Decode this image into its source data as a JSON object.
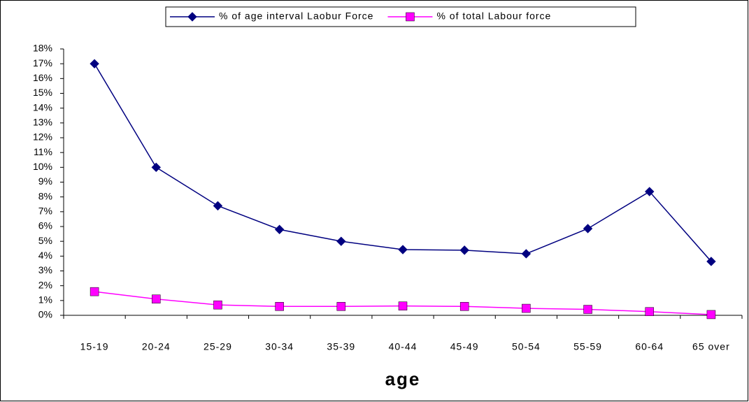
{
  "chart_data": {
    "type": "line",
    "x_label": "age",
    "categories": [
      "15-19",
      "20-24",
      "25-29",
      "30-34",
      "35-39",
      "40-44",
      "45-49",
      "50-54",
      "55-59",
      "60-64",
      "65 over"
    ],
    "series": [
      {
        "name": "% of age interval Laobur Force",
        "color": "#000080",
        "marker": "diamond",
        "values": [
          17.0,
          10.0,
          7.4,
          5.8,
          5.0,
          4.44,
          4.4,
          4.16,
          5.86,
          8.36,
          3.64
        ]
      },
      {
        "name": "% of total Labour force",
        "color": "#ff00ff",
        "marker": "square",
        "values": [
          1.6,
          1.1,
          0.7,
          0.6,
          0.6,
          0.63,
          0.6,
          0.47,
          0.4,
          0.25,
          0.05
        ]
      }
    ],
    "ylim": [
      0,
      18
    ],
    "yticks": [
      {
        "value": 0,
        "label": "0%"
      },
      {
        "value": 1,
        "label": "1%"
      },
      {
        "value": 2,
        "label": "2%"
      },
      {
        "value": 3,
        "label": "3%"
      },
      {
        "value": 4,
        "label": "4%"
      },
      {
        "value": 5,
        "label": "5%"
      },
      {
        "value": 6,
        "label": "6%"
      },
      {
        "value": 7,
        "label": "7%"
      },
      {
        "value": 8,
        "label": "8%"
      },
      {
        "value": 9,
        "label": "9%"
      },
      {
        "value": 10,
        "label": "10%"
      },
      {
        "value": 11,
        "label": "11%"
      },
      {
        "value": 12,
        "label": "12%"
      },
      {
        "value": 13,
        "label": "13%"
      },
      {
        "value": 14,
        "label": "14%"
      },
      {
        "value": 15,
        "label": "15%"
      },
      {
        "value": 16,
        "label": "16%"
      },
      {
        "value": 17,
        "label": "17%"
      },
      {
        "value": 18,
        "label": "18%"
      }
    ],
    "grid": false,
    "legend": "top"
  }
}
